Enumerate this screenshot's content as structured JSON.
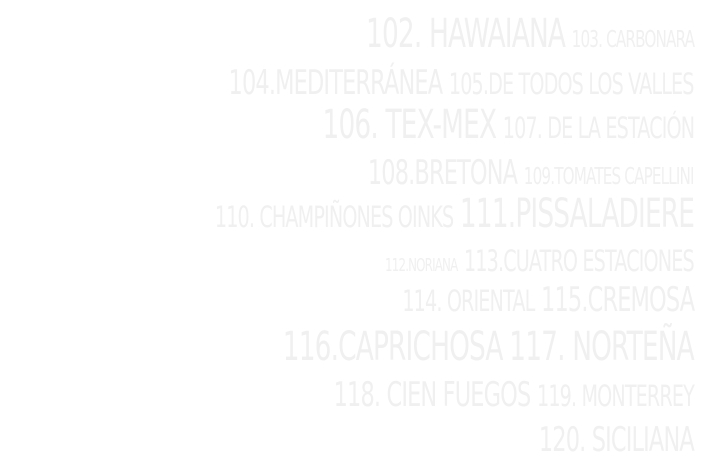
{
  "menu": {
    "items": [
      {
        "num": "102",
        "text": "102. HAWAIANA"
      },
      {
        "num": "103",
        "text": "103. CARBONARA"
      },
      {
        "num": "104",
        "text": "104.MEDITERRÁNEA"
      },
      {
        "num": "105",
        "text": "105.DE TODOS LOS VALLES"
      },
      {
        "num": "106",
        "text": "106. TEX-MEX"
      },
      {
        "num": "107",
        "text": "107. DE LA ESTACIÓN"
      },
      {
        "num": "108",
        "text": "108.BRETONA"
      },
      {
        "num": "109",
        "text": "109.TOMATES CAPELLINI"
      },
      {
        "num": "110",
        "text": "110. CHAMPIÑONES OINKS"
      },
      {
        "num": "111",
        "text": "111.PISSALADIERE"
      },
      {
        "num": "112",
        "text": "112.NORIANA"
      },
      {
        "num": "113",
        "text": "113.CUATRO ESTACIONES"
      },
      {
        "num": "114",
        "text": "114. ORIENTAL"
      },
      {
        "num": "115",
        "text": "115.CREMOSA"
      },
      {
        "num": "116",
        "text": "116.CAPRICHOSA"
      },
      {
        "num": "117",
        "text": "117. NORTEÑA"
      },
      {
        "num": "118",
        "text": "118. CIEN FUEGOS"
      },
      {
        "num": "119",
        "text": "119. MONTERREY"
      },
      {
        "num": "120",
        "text": "120. SICILIANA"
      }
    ]
  },
  "colors": {
    "background": "#ffffff",
    "text": "#f0f0f0"
  }
}
